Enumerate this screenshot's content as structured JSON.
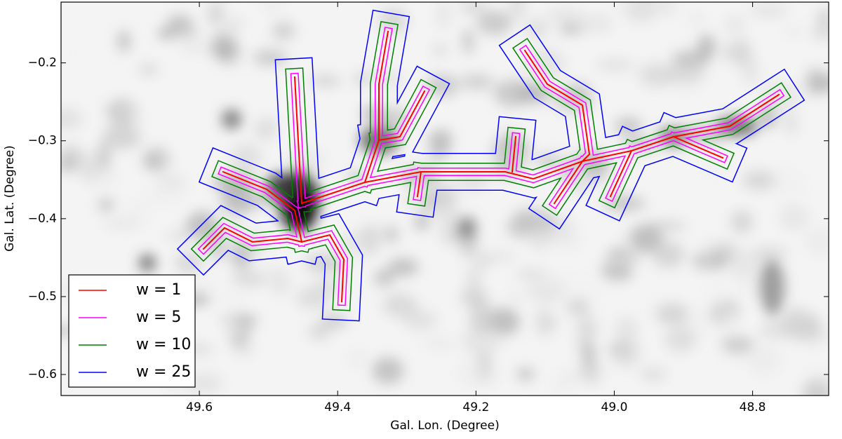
{
  "chart_data": {
    "type": "image",
    "xlabel": "Gal. Lon. (Degree)",
    "ylabel": "Gal. Lat. (Degree)",
    "xlim": [
      49.8,
      48.69
    ],
    "ylim": [
      -0.627,
      -0.122
    ],
    "xticks": [
      49.6,
      49.4,
      49.2,
      {
        "value": 49.0,
        "label": "49.0"
      },
      48.8
    ],
    "yticks": [
      {
        "value": -0.2,
        "label": "−0.2"
      },
      {
        "value": -0.3,
        "label": "−0.3"
      },
      {
        "value": -0.4,
        "label": "−0.4"
      },
      {
        "value": -0.5,
        "label": "−0.5"
      },
      {
        "value": -0.6,
        "label": "−0.6"
      }
    ],
    "legend": "lower left",
    "series": [
      {
        "name": "w = 1",
        "color": "#ff0000"
      },
      {
        "name": "w = 5",
        "color": "#ff00ff"
      },
      {
        "name": "w = 10",
        "color": "#008000"
      },
      {
        "name": "w = 25",
        "color": "#0000ff"
      }
    ]
  }
}
